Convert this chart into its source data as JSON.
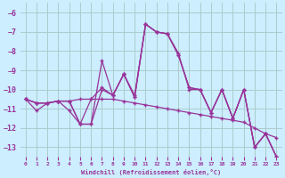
{
  "xlabel": "Windchill (Refroidissement éolien,°C)",
  "background_color": "#cceeff",
  "grid_color": "#aacccc",
  "line_color": "#993399",
  "x_values": [
    0,
    1,
    2,
    3,
    4,
    5,
    6,
    7,
    8,
    9,
    10,
    11,
    12,
    13,
    14,
    15,
    16,
    17,
    18,
    19,
    20,
    21,
    22,
    23
  ],
  "series": [
    [
      -10.5,
      -11.1,
      -10.7,
      -10.6,
      -10.6,
      -11.8,
      -11.8,
      -8.5,
      -10.3,
      -9.2,
      -10.3,
      -6.6,
      -7.0,
      -7.1,
      -8.1,
      -10.0,
      -10.0,
      -11.2,
      -10.0,
      -11.5,
      -10.0,
      -13.0,
      -12.3,
      -13.5
    ],
    [
      -10.5,
      -10.7,
      -10.7,
      -10.6,
      -10.6,
      -11.8,
      -11.8,
      -10.0,
      -10.3,
      -9.2,
      -10.4,
      -6.6,
      -7.0,
      -7.1,
      -8.2,
      -9.9,
      -10.0,
      -11.2,
      -10.0,
      -11.5,
      -10.0,
      -13.0,
      -12.3,
      -13.5
    ],
    [
      -10.5,
      -10.7,
      -10.7,
      -10.6,
      -11.1,
      -11.8,
      -10.5,
      -9.9,
      -10.3,
      -9.2,
      -10.4,
      -6.6,
      -7.0,
      -7.1,
      -8.2,
      -9.9,
      -10.0,
      -11.2,
      -10.0,
      -11.5,
      -10.0,
      -13.0,
      -12.3,
      -13.5
    ],
    [
      -10.5,
      -10.7,
      -10.7,
      -10.6,
      -10.6,
      -10.5,
      -10.5,
      -10.5,
      -10.5,
      -10.6,
      -10.7,
      -10.8,
      -10.9,
      -11.0,
      -11.1,
      -11.2,
      -11.3,
      -11.4,
      -11.5,
      -11.6,
      -11.7,
      -12.0,
      -12.3,
      -12.5
    ]
  ],
  "ylim": [
    -13.5,
    -5.5
  ],
  "xlim": [
    -0.5,
    23.5
  ],
  "yticks": [
    -6,
    -7,
    -8,
    -9,
    -10,
    -11,
    -12,
    -13
  ],
  "xticks": [
    0,
    1,
    2,
    3,
    4,
    5,
    6,
    7,
    8,
    9,
    10,
    11,
    12,
    13,
    14,
    15,
    16,
    17,
    18,
    19,
    20,
    21,
    22,
    23
  ]
}
